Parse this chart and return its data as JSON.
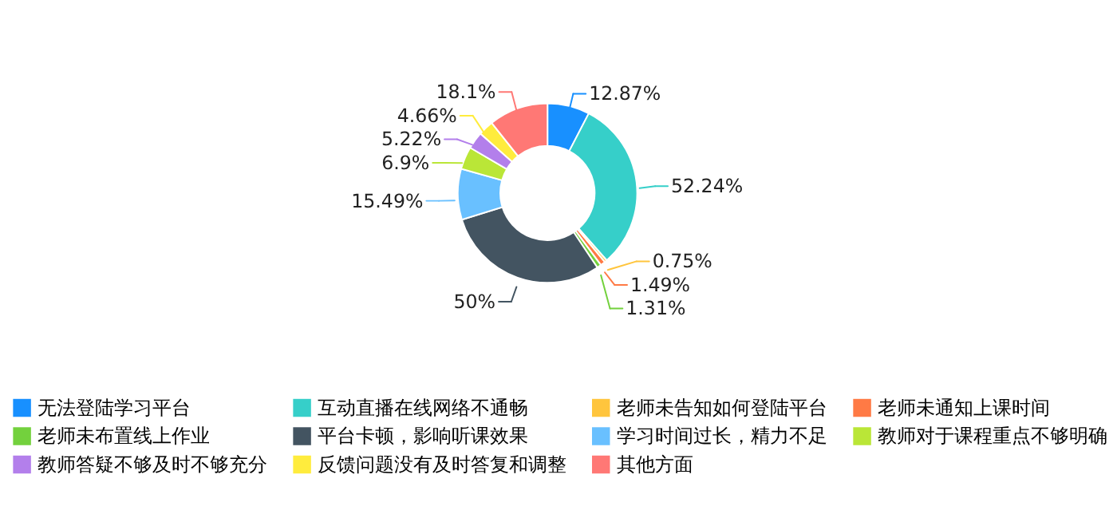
{
  "chart_data": {
    "type": "donut",
    "categories": [
      "无法登陆学习平台",
      "互动直播在线网络不通畅",
      "老师未告知如何登陆平台",
      "老师未通知上课时间",
      "老师未布置线上作业",
      "平台卡顿，影响听课效果",
      "学习时间过长，精力不足",
      "教师对于课程重点不够明确",
      "教师答疑不够及时不够充分",
      "反馈问题没有及时答复和调整",
      "其他方面"
    ],
    "values": [
      12.87,
      52.24,
      0.75,
      1.49,
      1.31,
      50,
      15.49,
      6.9,
      5.22,
      4.66,
      18.1
    ],
    "value_labels": [
      "12.87%",
      "52.24%",
      "0.75%",
      "1.49%",
      "1.31%",
      "50%",
      "15.49%",
      "6.9%",
      "5.22%",
      "4.66%",
      "18.1%"
    ],
    "colors": [
      "#1890ff",
      "#36cfc9",
      "#ffc53d",
      "#ff7a45",
      "#73d13d",
      "#435461",
      "#69c0ff",
      "#bae637",
      "#b37feb",
      "#ffec3d",
      "#ff7875"
    ],
    "legend": "bottom"
  }
}
